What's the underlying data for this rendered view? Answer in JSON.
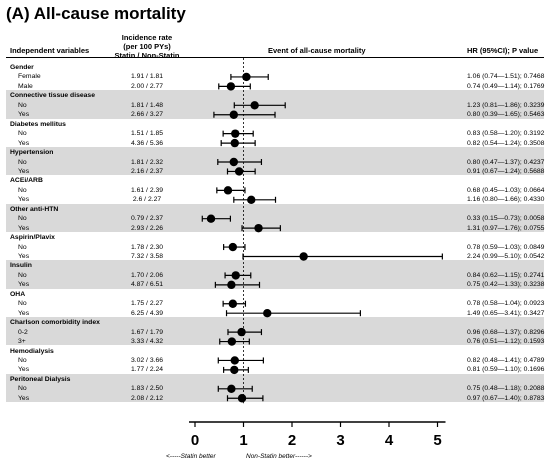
{
  "title": "(A) All-cause mortality",
  "headers": {
    "independent_variables": "Independent variables",
    "incidence_rate": [
      "Incidence rate",
      "(per 100 PYs)",
      "Statin / Non-Statin"
    ],
    "event": "Event of all-cause mortality",
    "hr": "HR (95%CI); P value"
  },
  "footer": {
    "left": "<-----Statin better",
    "right": "Non-Statin better------>"
  },
  "chart_data": {
    "type": "forest",
    "xlim": [
      0,
      5
    ],
    "xticks": [
      0,
      1,
      2,
      3,
      4,
      5
    ],
    "reference_line": 1,
    "groups": [
      {
        "name": "Gender",
        "shaded": false,
        "rows": [
          {
            "label": "Female",
            "incidence": "1.91 / 1.81",
            "hr": 1.06,
            "lo": 0.74,
            "hi": 1.51,
            "hr_text": "1.06 (0.74—1.51); 0.7468"
          },
          {
            "label": "Male",
            "incidence": "2.00 / 2.77",
            "hr": 0.74,
            "lo": 0.49,
            "hi": 1.14,
            "hr_text": "0.74 (0.49—1.14); 0.1769"
          }
        ]
      },
      {
        "name": "Connective tissue disease",
        "shaded": true,
        "rows": [
          {
            "label": "No",
            "incidence": "1.81 / 1.48",
            "hr": 1.23,
            "lo": 0.81,
            "hi": 1.86,
            "hr_text": "1.23 (0.81—1.86); 0.3239"
          },
          {
            "label": "Yes",
            "incidence": "2.66 / 3.27",
            "hr": 0.8,
            "lo": 0.39,
            "hi": 1.65,
            "hr_text": "0.80 (0.39—1.65); 0.5463"
          }
        ]
      },
      {
        "name": "Diabetes mellitus",
        "shaded": false,
        "rows": [
          {
            "label": "No",
            "incidence": "1.51 / 1.85",
            "hr": 0.83,
            "lo": 0.58,
            "hi": 1.2,
            "hr_text": "0.83 (0.58—1.20); 0.3192"
          },
          {
            "label": "Yes",
            "incidence": "4.36 / 5.36",
            "hr": 0.82,
            "lo": 0.54,
            "hi": 1.24,
            "hr_text": "0.82 (0.54—1.24); 0.3508"
          }
        ]
      },
      {
        "name": "Hypertension",
        "shaded": true,
        "rows": [
          {
            "label": "No",
            "incidence": "1.81 / 2.32",
            "hr": 0.8,
            "lo": 0.47,
            "hi": 1.37,
            "hr_text": "0.80 (0.47—1.37); 0.4237"
          },
          {
            "label": "Yes",
            "incidence": "2.16 / 2.37",
            "hr": 0.91,
            "lo": 0.67,
            "hi": 1.24,
            "hr_text": "0.91 (0.67—1.24); 0.5688"
          }
        ]
      },
      {
        "name": "ACEi/ARB",
        "shaded": false,
        "rows": [
          {
            "label": "No",
            "incidence": "1.61 / 2.39",
            "hr": 0.68,
            "lo": 0.45,
            "hi": 1.03,
            "hr_text": "0.68 (0.45—1.03); 0.0664"
          },
          {
            "label": "Yes",
            "incidence": "2.6 / 2.27",
            "hr": 1.16,
            "lo": 0.8,
            "hi": 1.66,
            "hr_text": "1.16 (0.80—1.66); 0.4330"
          }
        ]
      },
      {
        "name": "Other anti-HTN",
        "shaded": true,
        "rows": [
          {
            "label": "No",
            "incidence": "0.79 / 2.37",
            "hr": 0.33,
            "lo": 0.15,
            "hi": 0.73,
            "hr_text": "0.33 (0.15—0.73); 0.0058"
          },
          {
            "label": "Yes",
            "incidence": "2.93 / 2.26",
            "hr": 1.31,
            "lo": 0.97,
            "hi": 1.76,
            "hr_text": "1.31 (0.97—1.76); 0.0755"
          }
        ]
      },
      {
        "name": "Aspirin/Plavix",
        "shaded": false,
        "rows": [
          {
            "label": "No",
            "incidence": "1.78 / 2.30",
            "hr": 0.78,
            "lo": 0.59,
            "hi": 1.03,
            "hr_text": "0.78 (0.59—1.03); 0.0849"
          },
          {
            "label": "Yes",
            "incidence": "7.32 / 3.58",
            "hr": 2.24,
            "lo": 0.99,
            "hi": 5.1,
            "hr_text": "2.24 (0.99—5.10); 0.0542"
          }
        ]
      },
      {
        "name": "Insulin",
        "shaded": true,
        "rows": [
          {
            "label": "No",
            "incidence": "1.70 / 2.06",
            "hr": 0.84,
            "lo": 0.62,
            "hi": 1.15,
            "hr_text": "0.84 (0.62—1.15); 0.2741"
          },
          {
            "label": "Yes",
            "incidence": "4.87 / 6.51",
            "hr": 0.75,
            "lo": 0.42,
            "hi": 1.33,
            "hr_text": "0.75 (0.42—1.33); 0.3238"
          }
        ]
      },
      {
        "name": "OHA",
        "shaded": false,
        "rows": [
          {
            "label": "No",
            "incidence": "1.75 / 2.27",
            "hr": 0.78,
            "lo": 0.58,
            "hi": 1.04,
            "hr_text": "0.78 (0.58—1.04); 0.0923"
          },
          {
            "label": "Yes",
            "incidence": "6.25 / 4.39",
            "hr": 1.49,
            "lo": 0.65,
            "hi": 3.41,
            "hr_text": "1.49 (0.65—3.41); 0.3427"
          }
        ]
      },
      {
        "name": "Charlson comorbidity index",
        "shaded": true,
        "rows": [
          {
            "label": "0-2",
            "incidence": "1.67 / 1.79",
            "hr": 0.96,
            "lo": 0.68,
            "hi": 1.37,
            "hr_text": "0.96 (0.68—1.37); 0.8296"
          },
          {
            "label": "3+",
            "incidence": "3.33 / 4.32",
            "hr": 0.76,
            "lo": 0.51,
            "hi": 1.12,
            "hr_text": "0.76 (0.51—1.12); 0.1593"
          }
        ]
      },
      {
        "name": "Hemodialysis",
        "shaded": false,
        "rows": [
          {
            "label": "No",
            "incidence": "3.02 / 3.66",
            "hr": 0.82,
            "lo": 0.48,
            "hi": 1.41,
            "hr_text": "0.82 (0.48—1.41); 0.4789"
          },
          {
            "label": "Yes",
            "incidence": "1.77 / 2.24",
            "hr": 0.81,
            "lo": 0.59,
            "hi": 1.1,
            "hr_text": "0.81 (0.59—1.10); 0.1696"
          }
        ]
      },
      {
        "name": "Peritoneal Dialysis",
        "shaded": true,
        "rows": [
          {
            "label": "No",
            "incidence": "1.83 / 2.50",
            "hr": 0.75,
            "lo": 0.48,
            "hi": 1.18,
            "hr_text": "0.75 (0.48—1.18); 0.2088"
          },
          {
            "label": "Yes",
            "incidence": "2.08 / 2.12",
            "hr": 0.97,
            "lo": 0.67,
            "hi": 1.4,
            "hr_text": "0.97 (0.67—1.40); 0.8783"
          }
        ]
      }
    ]
  }
}
